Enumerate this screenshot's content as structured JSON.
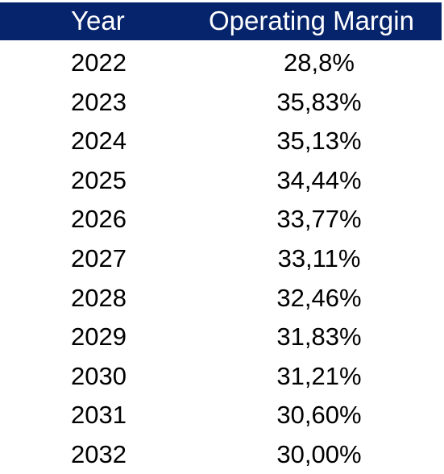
{
  "header": {
    "year": "Year",
    "margin": "Operating Margin"
  },
  "colors": {
    "header_bg": "#06246b",
    "header_text": "#ffffff",
    "body_text": "#000000"
  },
  "chart_data": {
    "type": "table",
    "columns": [
      "Year",
      "Operating Margin"
    ],
    "rows": [
      {
        "year": "2022",
        "margin": "28,8%"
      },
      {
        "year": "2023",
        "margin": "35,83%"
      },
      {
        "year": "2024",
        "margin": "35,13%"
      },
      {
        "year": "2025",
        "margin": "34,44%"
      },
      {
        "year": "2026",
        "margin": "33,77%"
      },
      {
        "year": "2027",
        "margin": "33,11%"
      },
      {
        "year": "2028",
        "margin": "32,46%"
      },
      {
        "year": "2029",
        "margin": "31,83%"
      },
      {
        "year": "2030",
        "margin": "31,21%"
      },
      {
        "year": "2031",
        "margin": "30,60%"
      },
      {
        "year": "2032",
        "margin": "30,00%"
      }
    ]
  }
}
